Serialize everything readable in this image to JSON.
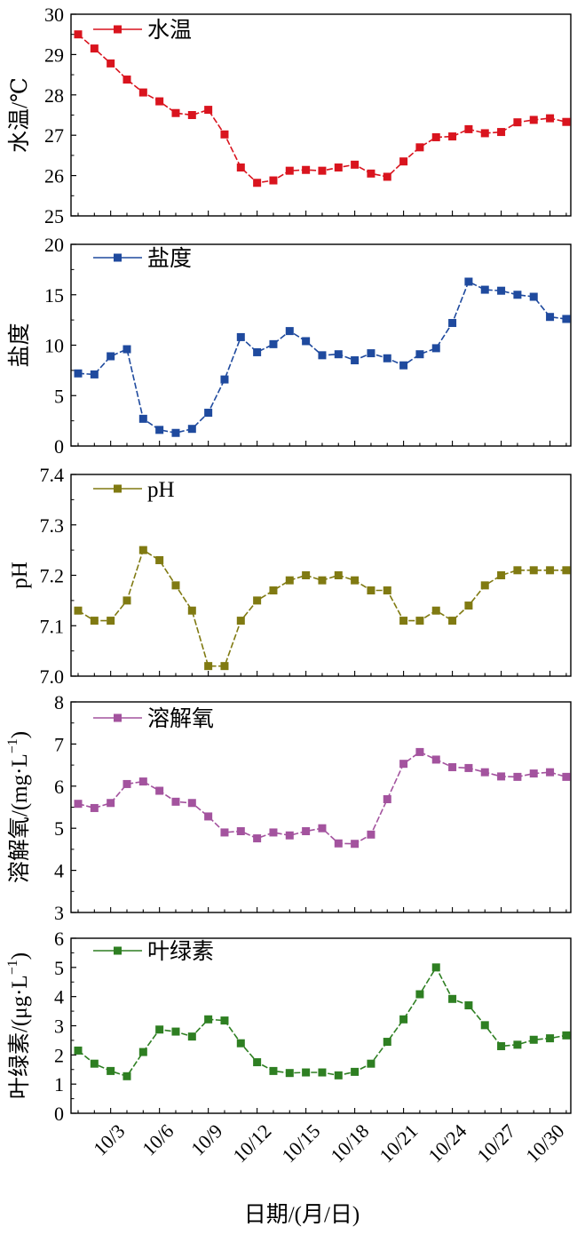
{
  "chart_data": {
    "type": "line",
    "x_tick_labels": [
      "10/3",
      "10/6",
      "10/9",
      "10/12",
      "10/15",
      "10/18",
      "10/21",
      "10/24",
      "10/27",
      "10/30"
    ],
    "x_label": "日期/(月/日)",
    "panels": [
      {
        "key": "temp",
        "ylabel": "水温/℃",
        "ylim": [
          25,
          30
        ],
        "yticks": [
          "25",
          "26",
          "27",
          "28",
          "29",
          "30"
        ],
        "legend": "水温",
        "color": "#d9141e",
        "values": [
          29.5,
          29.15,
          28.78,
          28.38,
          28.06,
          27.84,
          27.55,
          27.5,
          27.63,
          27.02,
          26.2,
          25.82,
          25.88,
          26.12,
          26.14,
          26.12,
          26.2,
          26.27,
          26.05,
          25.97,
          26.35,
          26.7,
          26.95,
          26.97,
          27.15,
          27.05,
          27.08,
          27.32,
          27.38,
          27.42,
          27.33
        ]
      },
      {
        "key": "salinity",
        "ylabel": "盐度",
        "ylim": [
          0,
          20
        ],
        "yticks": [
          "0",
          "5",
          "10",
          "15",
          "20"
        ],
        "legend": "盐度",
        "color": "#1f4a9e",
        "values": [
          7.2,
          7.1,
          8.9,
          9.6,
          2.7,
          1.6,
          1.3,
          1.7,
          3.3,
          6.6,
          10.8,
          9.3,
          10.1,
          11.4,
          10.4,
          9.0,
          9.1,
          8.5,
          9.2,
          8.7,
          8.0,
          9.1,
          9.7,
          12.2,
          16.3,
          15.5,
          15.4,
          15.0,
          14.8,
          12.8,
          12.6
        ]
      },
      {
        "key": "ph",
        "ylabel": "pH",
        "ylim": [
          7.0,
          7.4
        ],
        "yticks": [
          "7.0",
          "7.1",
          "7.2",
          "7.3",
          "7.4"
        ],
        "legend": "pH",
        "color": "#807a12",
        "values": [
          7.13,
          7.11,
          7.11,
          7.15,
          7.25,
          7.23,
          7.18,
          7.13,
          7.02,
          7.02,
          7.11,
          7.15,
          7.17,
          7.19,
          7.2,
          7.19,
          7.2,
          7.19,
          7.17,
          7.17,
          7.11,
          7.11,
          7.13,
          7.11,
          7.14,
          7.18,
          7.2,
          7.21,
          7.21,
          7.21,
          7.21
        ]
      },
      {
        "key": "do",
        "ylabel": "溶解氧/(mg·L",
        "ylabel_sup": "−1",
        "ylabel_end": ")",
        "ylim": [
          3,
          8
        ],
        "yticks": [
          "3",
          "4",
          "5",
          "6",
          "7",
          "8"
        ],
        "legend": "溶解氧",
        "color": "#a3539e",
        "values": [
          5.58,
          5.48,
          5.6,
          6.05,
          6.11,
          5.89,
          5.63,
          5.6,
          5.28,
          4.9,
          4.93,
          4.76,
          4.9,
          4.83,
          4.93,
          5.0,
          4.64,
          4.63,
          4.85,
          5.69,
          6.53,
          6.81,
          6.63,
          6.45,
          6.43,
          6.33,
          6.23,
          6.22,
          6.3,
          6.33,
          6.22
        ]
      },
      {
        "key": "chl",
        "ylabel": "叶绿素/(μg·L",
        "ylabel_sup": "−1",
        "ylabel_end": ")",
        "ylim": [
          0,
          6
        ],
        "yticks": [
          "0",
          "1",
          "2",
          "3",
          "4",
          "5",
          "6"
        ],
        "legend": "叶绿素",
        "color": "#2e7f22",
        "values": [
          2.15,
          1.7,
          1.45,
          1.27,
          2.1,
          2.87,
          2.8,
          2.63,
          3.22,
          3.18,
          2.4,
          1.75,
          1.45,
          1.38,
          1.4,
          1.4,
          1.3,
          1.42,
          1.7,
          2.45,
          3.22,
          4.08,
          5.0,
          3.92,
          3.7,
          3.02,
          2.3,
          2.35,
          2.52,
          2.57,
          2.67
        ]
      }
    ]
  }
}
